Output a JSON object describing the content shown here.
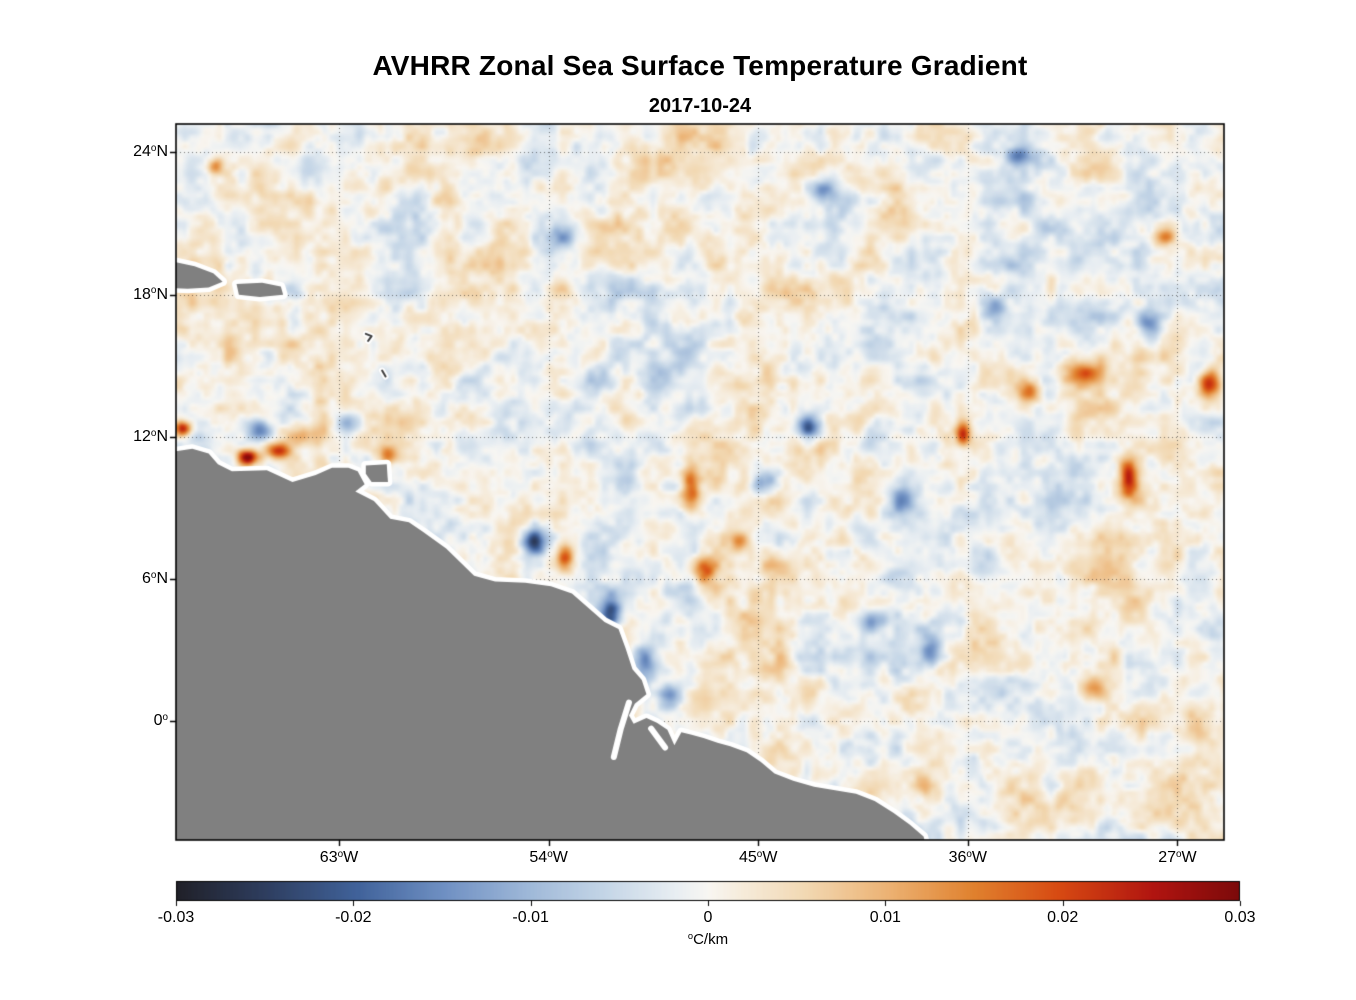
{
  "chart_data": {
    "type": "heatmap",
    "title": "AVHRR Zonal Sea Surface Temperature Gradient",
    "subtitle": "2017-10-24",
    "lon_range": [
      -70,
      -25
    ],
    "lat_range": [
      -5,
      25.2
    ],
    "degree_symbol": "o",
    "grid": true,
    "x_ticks": [
      {
        "lon": -63,
        "num": "63",
        "hemi": "W"
      },
      {
        "lon": -54,
        "num": "54",
        "hemi": "W"
      },
      {
        "lon": -45,
        "num": "45",
        "hemi": "W"
      },
      {
        "lon": -36,
        "num": "36",
        "hemi": "W"
      },
      {
        "lon": -27,
        "num": "27",
        "hemi": "W"
      }
    ],
    "y_ticks": [
      {
        "lat": 24,
        "num": "24",
        "hemi": "N"
      },
      {
        "lat": 18,
        "num": "18",
        "hemi": "N"
      },
      {
        "lat": 12,
        "num": "12",
        "hemi": "N"
      },
      {
        "lat": 6,
        "num": "6",
        "hemi": "N"
      },
      {
        "lat": 0,
        "num": "0",
        "hemi": ""
      }
    ],
    "colorbar": {
      "min": -0.03,
      "max": 0.03,
      "ticks": [
        {
          "v": -0.03,
          "label": "-0.03"
        },
        {
          "v": -0.02,
          "label": "-0.02"
        },
        {
          "v": -0.01,
          "label": "-0.01"
        },
        {
          "v": 0,
          "label": "0"
        },
        {
          "v": 0.01,
          "label": "0.01"
        },
        {
          "v": 0.02,
          "label": "0.02"
        },
        {
          "v": 0.03,
          "label": "0.03"
        }
      ],
      "unit_degree": "o",
      "unit_text": "C/km"
    },
    "colormap": [
      [
        0.0,
        "#202028"
      ],
      [
        0.085,
        "#2e3e60"
      ],
      [
        0.17,
        "#40629a"
      ],
      [
        0.25,
        "#6e8fc2"
      ],
      [
        0.33,
        "#9eb8d8"
      ],
      [
        0.41,
        "#c8d8e8"
      ],
      [
        0.47,
        "#e8eef2"
      ],
      [
        0.5,
        "#f8f6f2"
      ],
      [
        0.53,
        "#f6ecdc"
      ],
      [
        0.59,
        "#f2d9b4"
      ],
      [
        0.67,
        "#ecb273"
      ],
      [
        0.75,
        "#e0812e"
      ],
      [
        0.83,
        "#d74a12"
      ],
      [
        0.92,
        "#b01410"
      ],
      [
        1.0,
        "#7c0a0a"
      ]
    ],
    "land_color": "#808080",
    "coast_halo": "#ffffff",
    "frame_color": "#000000",
    "noise": {
      "seed": 11,
      "octaves": [
        {
          "scale_deg": 3.0,
          "amp": 0.0035
        },
        {
          "scale_deg": 1.3,
          "amp": 0.0045
        },
        {
          "scale_deg": 0.55,
          "amp": 0.003
        },
        {
          "scale_deg": 0.3,
          "amp": 0.002
        }
      ]
    },
    "features": [
      {
        "lon": -69.7,
        "lat": 12.35,
        "amp": 0.027,
        "rx": 0.35,
        "ry": 0.3
      },
      {
        "lon": -66.9,
        "lat": 11.15,
        "amp": 0.03,
        "rx": 0.45,
        "ry": 0.32
      },
      {
        "lon": -65.6,
        "lat": 11.4,
        "amp": 0.02,
        "rx": 0.5,
        "ry": 0.3
      },
      {
        "lon": -66.4,
        "lat": 12.3,
        "amp": -0.018,
        "rx": 0.5,
        "ry": 0.45
      },
      {
        "lon": -64.2,
        "lat": 12.1,
        "amp": 0.012,
        "rx": 0.9,
        "ry": 0.45
      },
      {
        "lon": -62.6,
        "lat": 12.6,
        "amp": -0.012,
        "rx": 0.5,
        "ry": 0.4
      },
      {
        "lon": -60.9,
        "lat": 11.25,
        "amp": 0.013,
        "rx": 0.4,
        "ry": 0.4
      },
      {
        "lon": -68.3,
        "lat": 23.4,
        "amp": 0.016,
        "rx": 0.35,
        "ry": 0.35
      },
      {
        "lon": -53.4,
        "lat": 20.4,
        "amp": -0.012,
        "rx": 0.6,
        "ry": 0.5
      },
      {
        "lon": -42.3,
        "lat": 22.4,
        "amp": -0.013,
        "rx": 0.5,
        "ry": 0.5
      },
      {
        "lon": -33.8,
        "lat": 23.8,
        "amp": -0.016,
        "rx": 0.6,
        "ry": 0.4
      },
      {
        "lon": -54.6,
        "lat": 7.6,
        "amp": -0.021,
        "rx": 0.45,
        "ry": 0.55
      },
      {
        "lon": -53.3,
        "lat": 7.0,
        "amp": 0.018,
        "rx": 0.35,
        "ry": 0.6
      },
      {
        "lon": -51.4,
        "lat": 4.5,
        "amp": -0.022,
        "rx": 0.5,
        "ry": 0.8
      },
      {
        "lon": -49.9,
        "lat": 2.5,
        "amp": -0.02,
        "rx": 0.6,
        "ry": 0.9
      },
      {
        "lon": -48.7,
        "lat": 1.1,
        "amp": -0.015,
        "rx": 0.5,
        "ry": 0.5
      },
      {
        "lon": -47.9,
        "lat": 9.9,
        "amp": 0.02,
        "rx": 0.4,
        "ry": 0.85
      },
      {
        "lon": -47.3,
        "lat": 6.3,
        "amp": 0.018,
        "rx": 0.45,
        "ry": 0.6
      },
      {
        "lon": -45.8,
        "lat": 7.6,
        "amp": 0.013,
        "rx": 0.4,
        "ry": 0.4
      },
      {
        "lon": -42.8,
        "lat": 12.4,
        "amp": -0.024,
        "rx": 0.55,
        "ry": 0.5
      },
      {
        "lon": -44.7,
        "lat": 10.1,
        "amp": -0.012,
        "rx": 0.5,
        "ry": 0.5
      },
      {
        "lon": -38.8,
        "lat": 9.3,
        "amp": -0.016,
        "rx": 0.55,
        "ry": 0.7
      },
      {
        "lon": -36.2,
        "lat": 12.1,
        "amp": 0.019,
        "rx": 0.3,
        "ry": 0.5
      },
      {
        "lon": -40.1,
        "lat": 4.1,
        "amp": -0.013,
        "rx": 0.6,
        "ry": 0.5
      },
      {
        "lon": -37.6,
        "lat": 2.9,
        "amp": -0.015,
        "rx": 0.5,
        "ry": 0.6
      },
      {
        "lon": -29.1,
        "lat": 10.3,
        "amp": 0.024,
        "rx": 0.4,
        "ry": 0.9
      },
      {
        "lon": -31.1,
        "lat": 14.6,
        "amp": 0.016,
        "rx": 0.8,
        "ry": 0.55
      },
      {
        "lon": -33.3,
        "lat": 13.9,
        "amp": 0.013,
        "rx": 0.5,
        "ry": 0.5
      },
      {
        "lon": -28.2,
        "lat": 16.8,
        "amp": -0.016,
        "rx": 0.5,
        "ry": 0.6
      },
      {
        "lon": -25.6,
        "lat": 14.2,
        "amp": 0.02,
        "rx": 0.45,
        "ry": 0.7
      },
      {
        "lon": -30.6,
        "lat": 1.4,
        "amp": 0.015,
        "rx": 0.6,
        "ry": 0.5
      },
      {
        "lon": -35.0,
        "lat": 17.5,
        "amp": -0.012,
        "rx": 0.5,
        "ry": 0.5
      },
      {
        "lon": -27.5,
        "lat": 20.5,
        "amp": 0.012,
        "rx": 0.5,
        "ry": 0.4
      }
    ],
    "land_polygons": [
      {
        "name": "south-america-mainland",
        "type": "fill",
        "pts": [
          [
            -70.6,
            11.3
          ],
          [
            -69.3,
            11.5
          ],
          [
            -68.6,
            11.3
          ],
          [
            -68.2,
            10.85
          ],
          [
            -67.6,
            10.55
          ],
          [
            -66.1,
            10.6
          ],
          [
            -65.0,
            10.1
          ],
          [
            -64.0,
            10.4
          ],
          [
            -63.3,
            10.7
          ],
          [
            -62.6,
            10.7
          ],
          [
            -62.2,
            10.55
          ],
          [
            -61.9,
            10.0
          ],
          [
            -62.3,
            9.7
          ],
          [
            -61.5,
            9.3
          ],
          [
            -60.8,
            8.55
          ],
          [
            -60.0,
            8.4
          ],
          [
            -59.4,
            8.0
          ],
          [
            -58.4,
            7.3
          ],
          [
            -57.2,
            6.15
          ],
          [
            -56.3,
            5.9
          ],
          [
            -55.0,
            5.85
          ],
          [
            -53.9,
            5.7
          ],
          [
            -53.0,
            5.4
          ],
          [
            -52.3,
            4.8
          ],
          [
            -51.6,
            4.2
          ],
          [
            -51.0,
            3.9
          ],
          [
            -50.7,
            3.1
          ],
          [
            -50.4,
            2.2
          ],
          [
            -50.0,
            1.75
          ],
          [
            -49.8,
            1.15
          ],
          [
            -50.3,
            0.75
          ],
          [
            -50.55,
            0.25
          ],
          [
            -50.35,
            -0.1
          ],
          [
            -49.8,
            0.15
          ],
          [
            -49.35,
            -0.05
          ],
          [
            -48.9,
            -0.35
          ],
          [
            -48.6,
            -1.0
          ],
          [
            -48.3,
            -0.45
          ],
          [
            -47.9,
            -0.55
          ],
          [
            -47.35,
            -0.7
          ],
          [
            -46.75,
            -0.9
          ],
          [
            -46.2,
            -1.05
          ],
          [
            -45.5,
            -1.3
          ],
          [
            -44.9,
            -1.7
          ],
          [
            -44.3,
            -2.2
          ],
          [
            -43.5,
            -2.5
          ],
          [
            -42.6,
            -2.75
          ],
          [
            -41.7,
            -2.9
          ],
          [
            -40.8,
            -3.05
          ],
          [
            -40.0,
            -3.35
          ],
          [
            -39.2,
            -3.85
          ],
          [
            -38.5,
            -4.35
          ],
          [
            -37.9,
            -4.85
          ],
          [
            -37.7,
            -5.6
          ],
          [
            -70.6,
            -5.6
          ]
        ]
      },
      {
        "name": "hispaniola-east",
        "type": "fill",
        "pts": [
          [
            -70.6,
            19.5
          ],
          [
            -69.2,
            19.2
          ],
          [
            -68.4,
            18.9
          ],
          [
            -68.0,
            18.55
          ],
          [
            -68.6,
            18.3
          ],
          [
            -69.5,
            18.25
          ],
          [
            -70.6,
            18.3
          ]
        ]
      },
      {
        "name": "puerto-rico",
        "type": "fill",
        "pts": [
          [
            -67.4,
            18.45
          ],
          [
            -66.3,
            18.5
          ],
          [
            -65.5,
            18.35
          ],
          [
            -65.4,
            18.0
          ],
          [
            -66.4,
            17.9
          ],
          [
            -67.3,
            18.0
          ]
        ]
      },
      {
        "name": "trinidad",
        "type": "fill",
        "pts": [
          [
            -61.85,
            10.8
          ],
          [
            -60.95,
            10.85
          ],
          [
            -60.9,
            10.1
          ],
          [
            -61.6,
            10.1
          ],
          [
            -61.85,
            10.45
          ]
        ]
      },
      {
        "name": "guadeloupe",
        "type": "line",
        "pts": [
          [
            -61.85,
            16.35
          ],
          [
            -61.6,
            16.25
          ],
          [
            -61.75,
            16.05
          ]
        ]
      },
      {
        "name": "martinique",
        "type": "line",
        "pts": [
          [
            -61.15,
            14.8
          ],
          [
            -61.0,
            14.55
          ]
        ]
      }
    ],
    "channels": [
      {
        "name": "amazon-river-mouth",
        "pts": [
          [
            -50.55,
            0.8
          ],
          [
            -50.9,
            -0.3
          ],
          [
            -51.2,
            -1.5
          ]
        ]
      },
      {
        "name": "para-river",
        "pts": [
          [
            -49.6,
            -0.3
          ],
          [
            -49.0,
            -1.1
          ]
        ]
      }
    ]
  }
}
